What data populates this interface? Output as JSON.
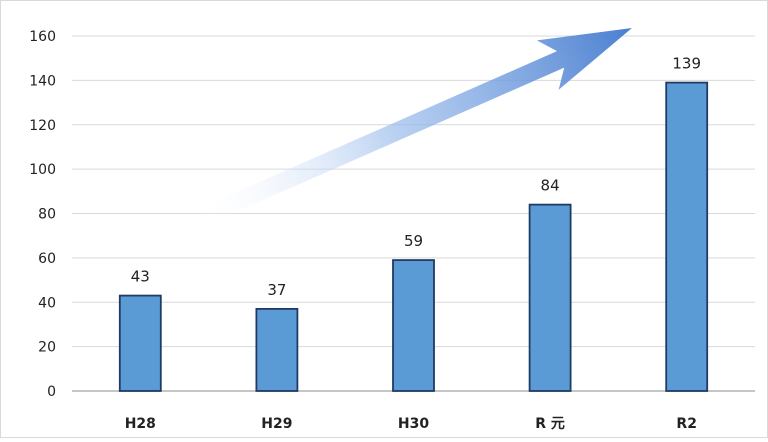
{
  "chart_data": {
    "type": "bar",
    "categories": [
      "H28",
      "H29",
      "H30",
      "R 元",
      "R2"
    ],
    "values": [
      43,
      37,
      59,
      84,
      139
    ],
    "data_labels": [
      "43",
      "37",
      "59",
      "84",
      "139"
    ],
    "yticks": [
      "0",
      "20",
      "40",
      "60",
      "80",
      "100",
      "120",
      "140",
      "160"
    ],
    "ylim": [
      0,
      160
    ],
    "grid": true,
    "bar_color": "#5b9bd5",
    "bar_edge_color": "#1f3b63",
    "arrow_color": "#4a7fd0",
    "trend_arrow": "increasing-trend-arrow",
    "title": "",
    "xlabel": "",
    "ylabel": ""
  }
}
